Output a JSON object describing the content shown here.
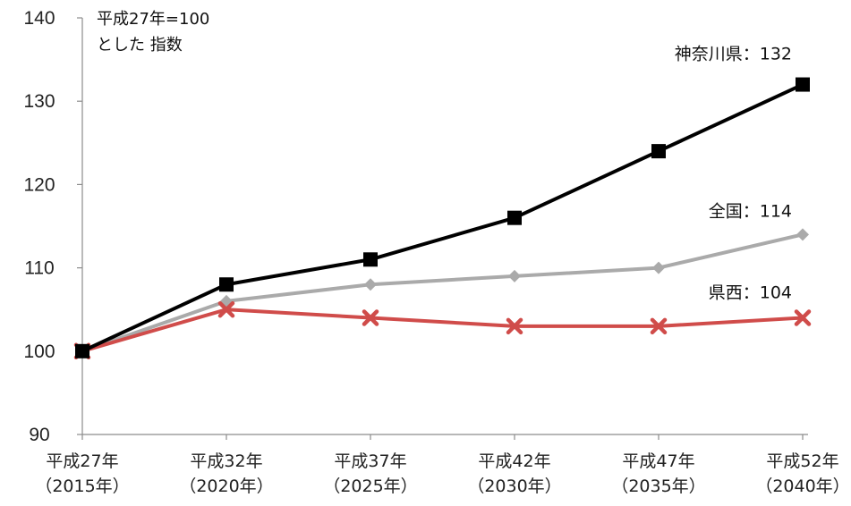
{
  "chart_data": {
    "type": "line",
    "categories": [
      "平成27年\n（2015年）",
      "平成32年\n（2020年）",
      "平成37年\n（2025年）",
      "平成42年\n（2030年）",
      "平成47年\n（2035年）",
      "平成52年\n（2040年）"
    ],
    "series": [
      {
        "name": "神奈川県",
        "color": "#000000",
        "marker": "square",
        "values": [
          100,
          108,
          111,
          116,
          124,
          132
        ],
        "end_label": "神奈川県：132"
      },
      {
        "name": "全国",
        "color": "#aaaaaa",
        "marker": "diamond",
        "values": [
          100,
          106,
          108,
          109,
          110,
          114
        ],
        "end_label": "全国：114"
      },
      {
        "name": "県西",
        "color": "#d04c4a",
        "marker": "x",
        "values": [
          100,
          105,
          104,
          103,
          103,
          104
        ],
        "end_label": "県西：104"
      }
    ],
    "ylim": [
      90,
      140
    ],
    "yticks": [
      90,
      100,
      110,
      120,
      130,
      140
    ],
    "note": [
      "平成27年=100",
      "とした 指数"
    ],
    "grid": false,
    "legend": "none"
  }
}
